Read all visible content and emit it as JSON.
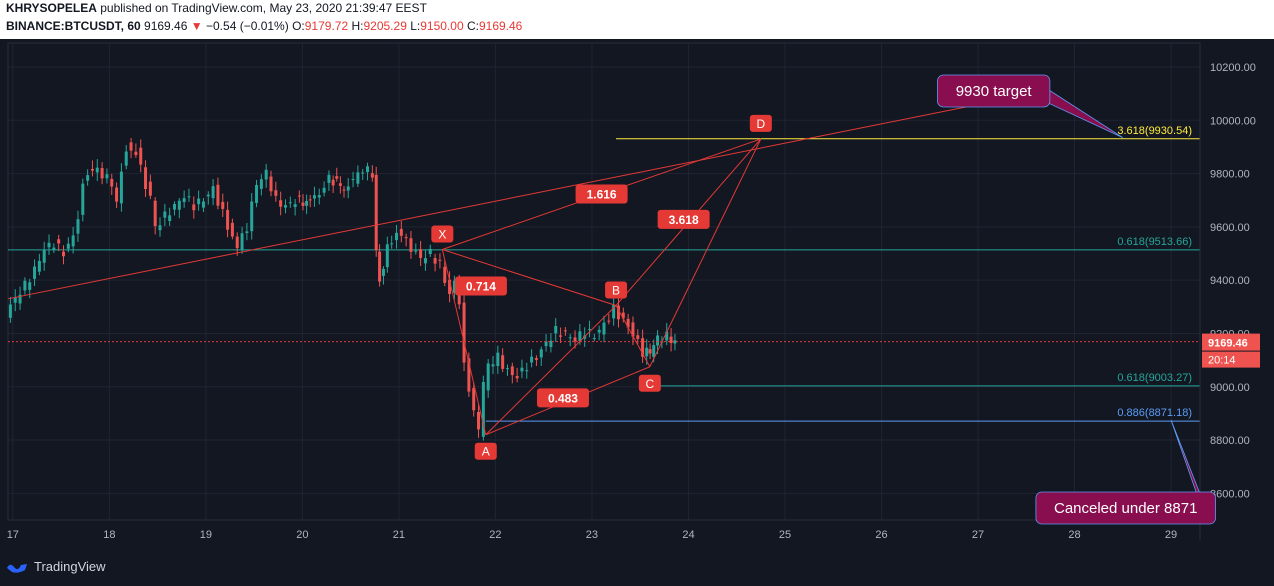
{
  "header": {
    "line1_user": "KHRYSOPELEA",
    "line1_rest": " published on TradingView.com, May 23, 2020 21:39:47 EEST",
    "symbol": "BINANCE:BTCUSDT, 60",
    "last": "9169.46",
    "change": "−0.54 (−0.01%)",
    "o_label": "O:",
    "o": "9179.72",
    "h_label": "H:",
    "h": "9205.29",
    "l_label": "L:",
    "l": "9150.00",
    "c_label": "C:",
    "c": "9169.46"
  },
  "brand": {
    "name": "TradingView",
    "logo_icon": "tradingview-logo-icon"
  },
  "chart_data": {
    "type": "candlestick",
    "symbol": "BINANCE:BTCUSDT",
    "interval": "60",
    "x_ticks": [
      "17",
      "18",
      "19",
      "20",
      "21",
      "22",
      "23",
      "24",
      "25",
      "26",
      "27",
      "28",
      "29"
    ],
    "y_ticks": [
      "8600.00",
      "8800.00",
      "9000.00",
      "9200.00",
      "9400.00",
      "9600.00",
      "9800.00",
      "10000.00",
      "10200.00"
    ],
    "ylim": [
      8500,
      10290
    ],
    "xlim": [
      16.95,
      29.3
    ],
    "grid": true,
    "last_price": {
      "value": 9169.46,
      "label": "9169.46",
      "countdown": "20:14"
    },
    "candles_close_path": [
      [
        16.95,
        9270
      ],
      [
        17.05,
        9330
      ],
      [
        17.15,
        9380
      ],
      [
        17.25,
        9440
      ],
      [
        17.35,
        9520
      ],
      [
        17.45,
        9540
      ],
      [
        17.55,
        9500
      ],
      [
        17.65,
        9560
      ],
      [
        17.7,
        9640
      ],
      [
        17.75,
        9780
      ],
      [
        17.85,
        9820
      ],
      [
        17.95,
        9800
      ],
      [
        18.05,
        9760
      ],
      [
        18.1,
        9690
      ],
      [
        18.15,
        9820
      ],
      [
        18.2,
        9900
      ],
      [
        18.3,
        9880
      ],
      [
        18.4,
        9760
      ],
      [
        18.45,
        9700
      ],
      [
        18.5,
        9600
      ],
      [
        18.6,
        9640
      ],
      [
        18.7,
        9680
      ],
      [
        18.8,
        9720
      ],
      [
        18.9,
        9680
      ],
      [
        19.0,
        9700
      ],
      [
        19.1,
        9740
      ],
      [
        19.2,
        9650
      ],
      [
        19.3,
        9560
      ],
      [
        19.35,
        9520
      ],
      [
        19.45,
        9600
      ],
      [
        19.55,
        9760
      ],
      [
        19.65,
        9800
      ],
      [
        19.75,
        9700
      ],
      [
        19.85,
        9680
      ],
      [
        19.95,
        9700
      ],
      [
        20.1,
        9690
      ],
      [
        20.2,
        9720
      ],
      [
        20.3,
        9780
      ],
      [
        20.45,
        9750
      ],
      [
        20.55,
        9780
      ],
      [
        20.65,
        9820
      ],
      [
        20.75,
        9800
      ],
      [
        20.78,
        9500
      ],
      [
        20.82,
        9400
      ],
      [
        20.9,
        9520
      ],
      [
        21.0,
        9580
      ],
      [
        21.05,
        9560
      ],
      [
        21.15,
        9520
      ],
      [
        21.25,
        9480
      ],
      [
        21.35,
        9500
      ],
      [
        21.45,
        9460
      ],
      [
        21.5,
        9400
      ],
      [
        21.55,
        9340
      ],
      [
        21.6,
        9380
      ],
      [
        21.65,
        9300
      ],
      [
        21.7,
        9100
      ],
      [
        21.75,
        9000
      ],
      [
        21.8,
        8920
      ],
      [
        21.85,
        8830
      ],
      [
        21.9,
        9000
      ],
      [
        21.95,
        9080
      ],
      [
        22.05,
        9110
      ],
      [
        22.15,
        9060
      ],
      [
        22.25,
        9040
      ],
      [
        22.35,
        9080
      ],
      [
        22.45,
        9110
      ],
      [
        22.55,
        9160
      ],
      [
        22.65,
        9210
      ],
      [
        22.75,
        9200
      ],
      [
        22.85,
        9180
      ],
      [
        22.95,
        9210
      ],
      [
        23.05,
        9190
      ],
      [
        23.15,
        9230
      ],
      [
        23.25,
        9290
      ],
      [
        23.35,
        9250
      ],
      [
        23.45,
        9200
      ],
      [
        23.55,
        9130
      ],
      [
        23.62,
        9130
      ],
      [
        23.7,
        9180
      ],
      [
        23.8,
        9190
      ],
      [
        23.88,
        9170
      ]
    ],
    "harmonic_points": [
      {
        "label": "X",
        "x": 21.45,
        "y": 9515
      },
      {
        "label": "A",
        "x": 21.9,
        "y": 8820
      },
      {
        "label": "B",
        "x": 23.25,
        "y": 9305
      },
      {
        "label": "C",
        "x": 23.6,
        "y": 9075
      },
      {
        "label": "D",
        "x": 24.75,
        "y": 9930
      }
    ],
    "ratio_labels": [
      {
        "label": "0.714",
        "x": 21.85,
        "y": 9380
      },
      {
        "label": "0.483",
        "x": 22.7,
        "y": 8960
      },
      {
        "label": "3.618",
        "x": 23.95,
        "y": 9630
      },
      {
        "label": "1.616",
        "x": 23.1,
        "y": 9725
      }
    ],
    "fib_levels": [
      {
        "label": "3.618(9930.54)",
        "value": 9930.54,
        "color": "#ffeb3b",
        "x_start": 23.25
      },
      {
        "label": "0.618(9513.66)",
        "value": 9513.66,
        "color": "#26a69a",
        "x_start": 16.95
      },
      {
        "label": "0.618(9003.27)",
        "value": 9003.27,
        "color": "#26a69a",
        "x_start": 23.6
      },
      {
        "label": "0.886(8871.18)",
        "value": 8871.18,
        "color": "#5b9cf6",
        "x_start": 21.9
      }
    ],
    "callouts": [
      {
        "text": "9930 target",
        "x": 26.58,
        "y": 10170,
        "pointer": [
          28.5,
          9935
        ]
      },
      {
        "text": "Canceled under 8871",
        "x": 27.6,
        "y": 8605,
        "pointer": [
          29.0,
          8875
        ]
      }
    ],
    "trendline": {
      "from": [
        16.95,
        9330
      ],
      "to": [
        27.15,
        10070
      ]
    },
    "colors": {
      "accent": "#e53935",
      "bg": "#131722",
      "grid": "#1f2433",
      "axis_text": "#b2b5be",
      "callout": "#880e4f",
      "candle_up": "#26a69a",
      "candle_down": "#ef5350"
    }
  }
}
